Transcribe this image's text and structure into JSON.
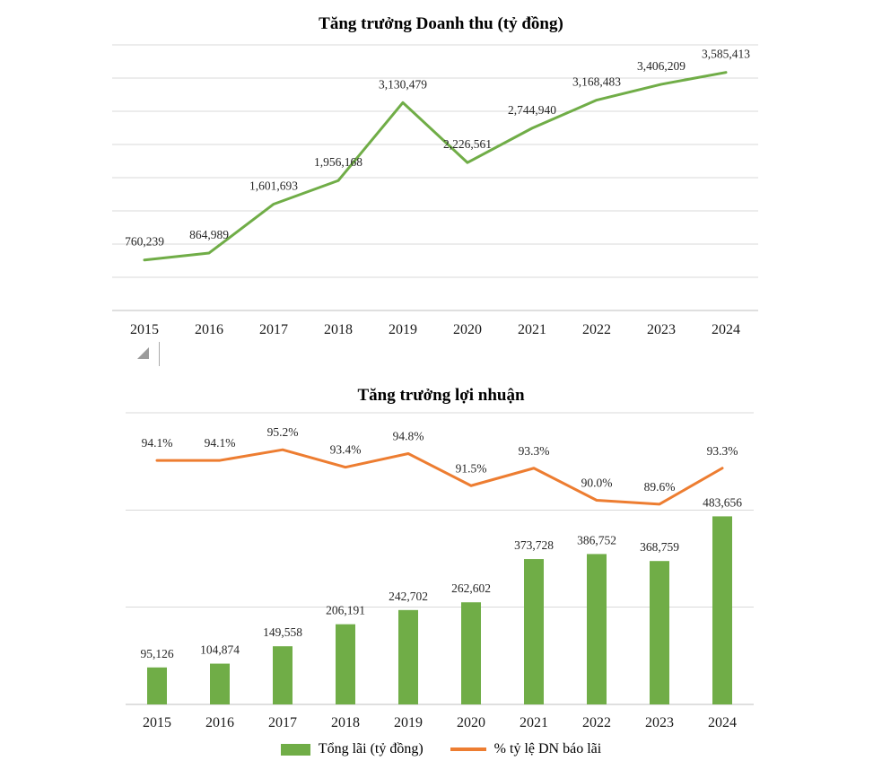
{
  "page": {
    "background": "#FFFFFF"
  },
  "colors": {
    "grid": "#D9D9D9",
    "axis": "#BFBFBF",
    "data_label": "#262626",
    "category_label": "#1A1A1A",
    "title": "#000000",
    "green": "#70AD47",
    "orange": "#ED7D31"
  },
  "chart_data": [
    {
      "type": "line",
      "title": "Tăng trưởng Doanh thu (tỷ đồng)",
      "categories": [
        "2015",
        "2016",
        "2017",
        "2018",
        "2019",
        "2020",
        "2021",
        "2022",
        "2023",
        "2024"
      ],
      "series": [
        {
          "name": "Doanh thu (tỷ đồng)",
          "type": "line",
          "color": "#70AD47",
          "values": [
            760239,
            864989,
            1601693,
            1956168,
            3130479,
            2226561,
            2744940,
            3168483,
            3406209,
            3585413
          ],
          "labels": [
            "760,239",
            "864,989",
            "1,601,693",
            "1,956,168",
            "3,130,479",
            "2,226,561",
            "2,744,940",
            "3,168,483",
            "3,406,209",
            "3,585,413"
          ]
        }
      ],
      "ylim": [
        0,
        4000000
      ],
      "grid": true,
      "legend_position": "none"
    },
    {
      "type": "combo",
      "title": "Tăng trưởng lợi nhuận",
      "categories": [
        "2015",
        "2016",
        "2017",
        "2018",
        "2019",
        "2020",
        "2021",
        "2022",
        "2023",
        "2024"
      ],
      "series": [
        {
          "name": "Tổng lãi (tỷ đồng)",
          "type": "bar",
          "axis": "primary",
          "color": "#70AD47",
          "values": [
            95126,
            104874,
            149558,
            206191,
            242702,
            262602,
            373728,
            386752,
            368759,
            483656
          ],
          "labels": [
            "95,126",
            "104,874",
            "149,558",
            "206,191",
            "242,702",
            "262,602",
            "373,728",
            "386,752",
            "368,759",
            "483,656"
          ]
        },
        {
          "name": "% tỷ lệ DN báo lãi",
          "type": "line",
          "axis": "secondary",
          "color": "#ED7D31",
          "values": [
            94.1,
            94.1,
            95.2,
            93.4,
            94.8,
            91.5,
            93.3,
            90.0,
            89.6,
            93.3
          ],
          "labels": [
            "94.1%",
            "94.1%",
            "95.2%",
            "93.4%",
            "94.8%",
            "91.5%",
            "93.3%",
            "90.0%",
            "89.6%",
            "93.3%"
          ]
        }
      ],
      "ylim_primary": [
        0,
        750000
      ],
      "ylim_secondary": [
        69,
        99
      ],
      "grid": true,
      "legend_position": "bottom"
    }
  ]
}
